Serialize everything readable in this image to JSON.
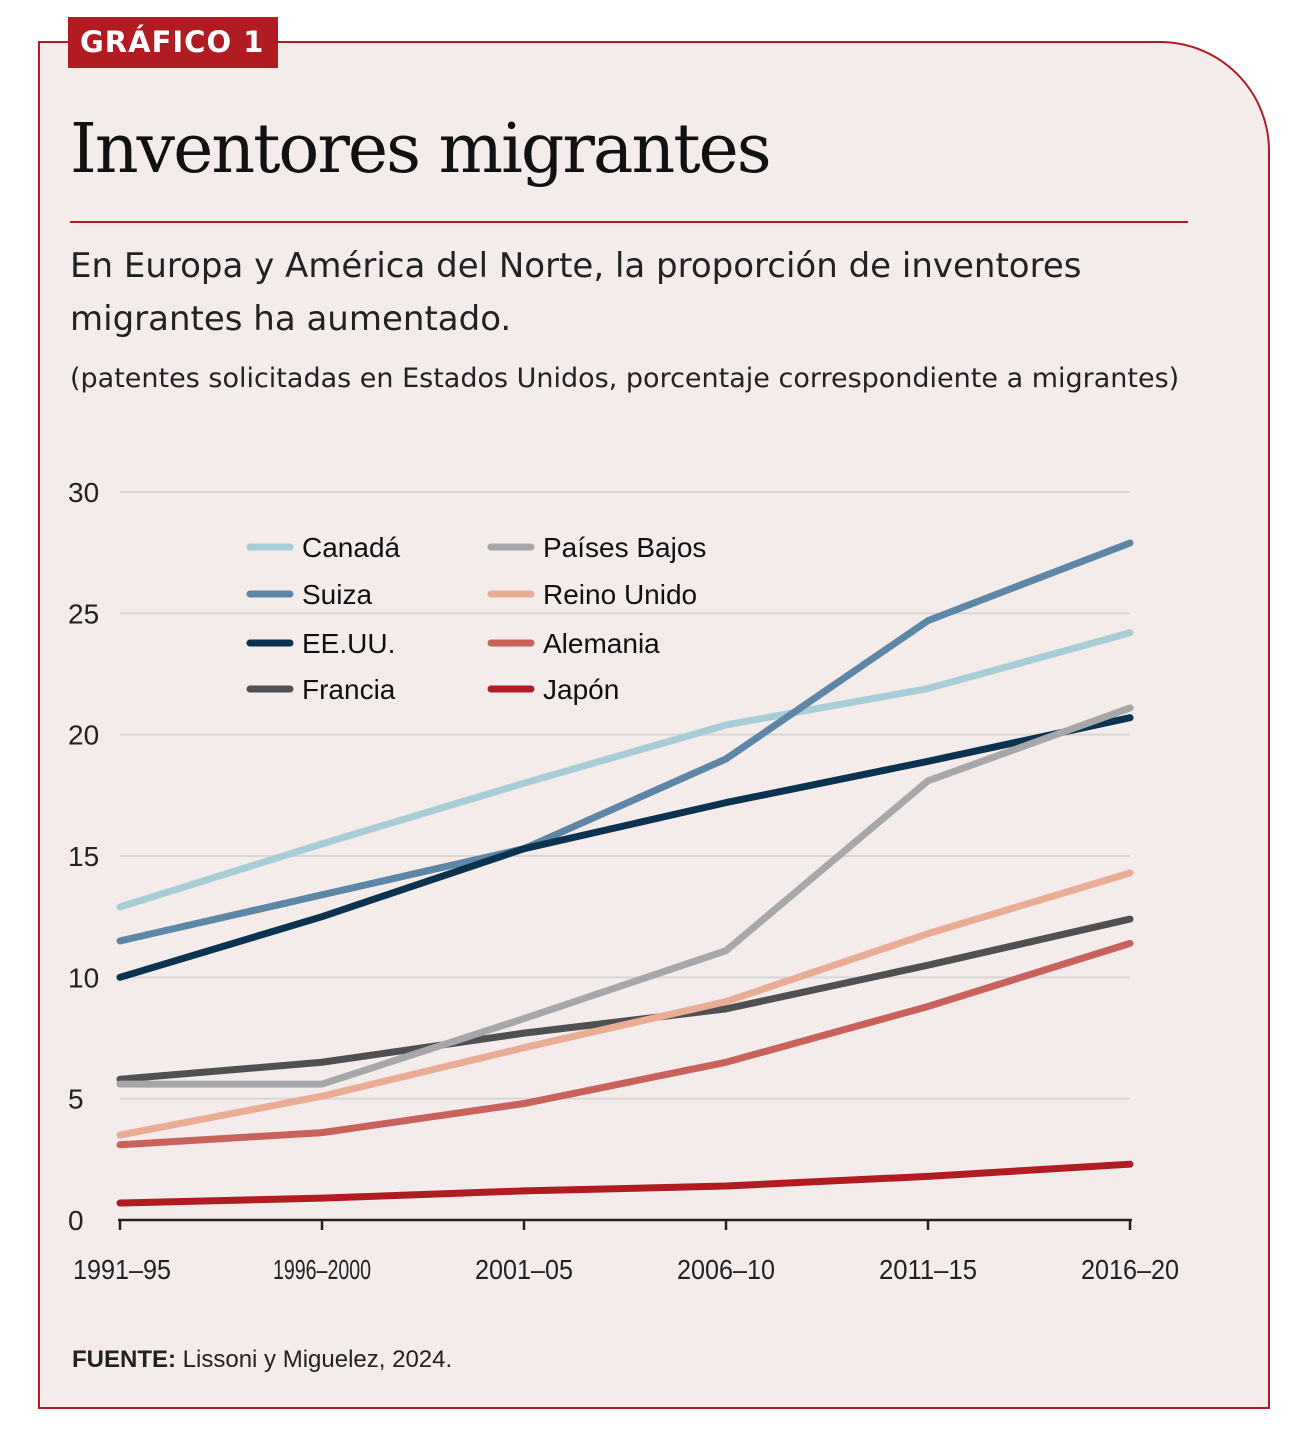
{
  "header": {
    "tag": "GRÁFICO 1",
    "title": "Inventores migrantes",
    "subtitle": "En Europa y América del Norte, la proporción de inventores migrantes ha aumentado.",
    "note": "(patentes solicitadas en Estados Unidos, porcentaje correspondiente a migrantes)"
  },
  "footer": {
    "source_label": "FUENTE:",
    "source_text": " Lissoni y Miguelez, 2024."
  },
  "colors": {
    "accent": "#b01c21",
    "background": "#f4ecea",
    "grid": "#d9d6d6"
  },
  "chart_data": {
    "type": "line",
    "title": "Inventores migrantes",
    "xlabel": "",
    "ylabel": "",
    "ylim": [
      0,
      30
    ],
    "yticks": [
      0,
      5,
      10,
      15,
      20,
      25,
      30
    ],
    "categories": [
      "1991–95",
      "1996–2000",
      "2001–05",
      "2006–10",
      "2011–15",
      "2016–20"
    ],
    "legend_position": "top-left",
    "series": [
      {
        "name": "Canadá",
        "color": "#a9cdd6",
        "values": [
          12.9,
          15.5,
          18.0,
          20.4,
          21.9,
          24.2
        ]
      },
      {
        "name": "Suiza",
        "color": "#5e86a6",
        "values": [
          11.5,
          13.4,
          15.3,
          19.0,
          24.7,
          27.9
        ]
      },
      {
        "name": "EE.UU.",
        "color": "#0b3350",
        "values": [
          10.0,
          12.5,
          15.3,
          17.2,
          18.9,
          20.7
        ]
      },
      {
        "name": "Francia",
        "color": "#505052",
        "values": [
          5.8,
          6.5,
          7.7,
          8.7,
          10.5,
          12.4
        ]
      },
      {
        "name": "Países Bajos",
        "color": "#a7a7aa",
        "values": [
          5.6,
          5.6,
          8.3,
          11.1,
          18.1,
          21.1
        ]
      },
      {
        "name": "Reino Unido",
        "color": "#e8ad94",
        "values": [
          3.5,
          5.1,
          7.1,
          9.0,
          11.8,
          14.3
        ]
      },
      {
        "name": "Alemania",
        "color": "#c9615c",
        "values": [
          3.1,
          3.6,
          4.8,
          6.5,
          8.8,
          11.4
        ]
      },
      {
        "name": "Japón",
        "color": "#b01c21",
        "values": [
          0.7,
          0.9,
          1.2,
          1.4,
          1.8,
          2.3
        ]
      }
    ]
  }
}
